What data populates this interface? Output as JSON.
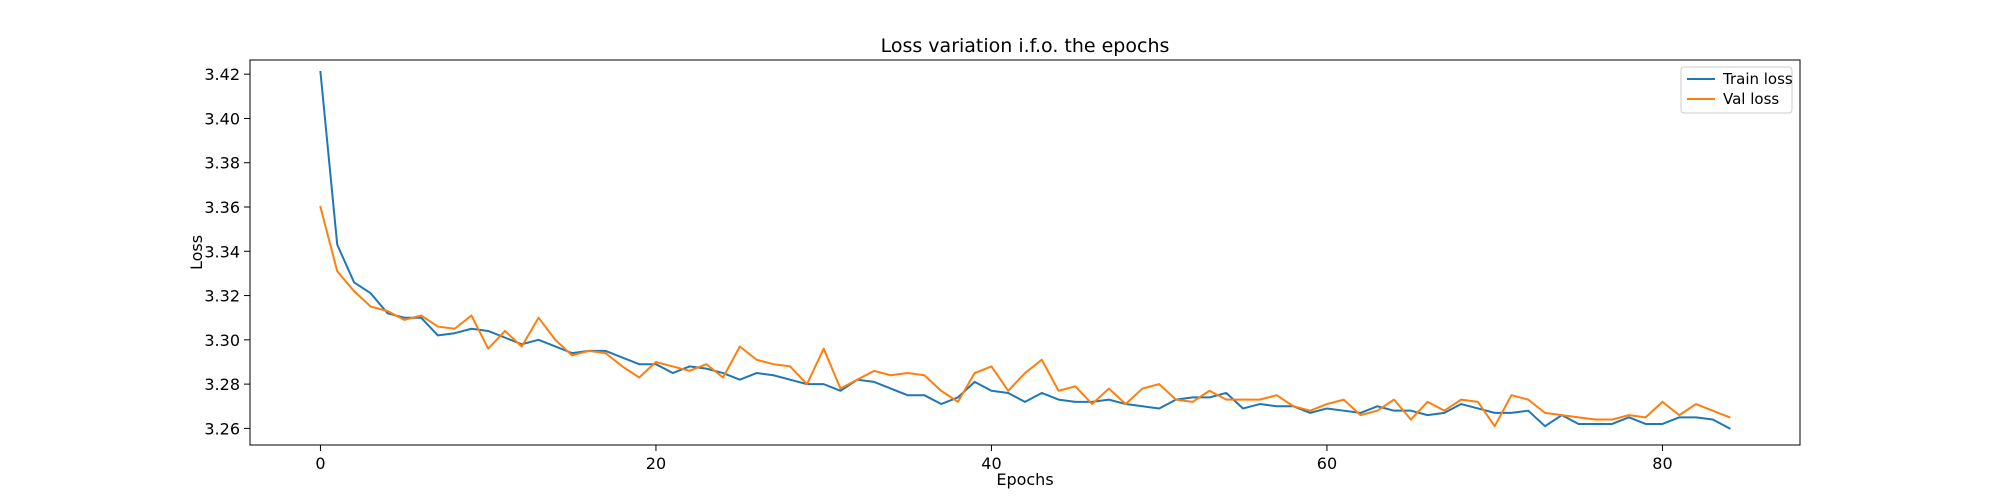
{
  "chart_data": {
    "type": "line",
    "title": "Loss variation i.f.o. the epochs",
    "xlabel": "Epochs",
    "ylabel": "Loss",
    "xlim": [
      -4.2,
      88.2
    ],
    "ylim": [
      3.2525,
      3.4264
    ],
    "xticks": [
      0,
      20,
      40,
      60,
      80
    ],
    "yticks": [
      3.26,
      3.28,
      3.3,
      3.32,
      3.34,
      3.36,
      3.38,
      3.4,
      3.42
    ],
    "ytick_labels": [
      "3.26",
      "3.28",
      "3.30",
      "3.32",
      "3.34",
      "3.36",
      "3.38",
      "3.40",
      "3.42"
    ],
    "grid": false,
    "legend_position": "top-right",
    "series": [
      {
        "name": "Train loss",
        "color": "#1f77b4",
        "x": [
          0,
          1,
          2,
          3,
          4,
          5,
          6,
          7,
          8,
          9,
          10,
          11,
          12,
          13,
          14,
          15,
          16,
          17,
          18,
          19,
          20,
          21,
          22,
          23,
          24,
          25,
          26,
          27,
          28,
          29,
          30,
          31,
          32,
          33,
          34,
          35,
          36,
          37,
          38,
          39,
          40,
          41,
          42,
          43,
          44,
          45,
          46,
          47,
          48,
          49,
          50,
          51,
          52,
          53,
          54,
          55,
          56,
          57,
          58,
          59,
          60,
          61,
          62,
          63,
          64,
          65,
          66,
          67,
          68,
          69,
          70,
          71,
          72,
          73,
          74,
          75,
          76,
          77,
          78,
          79,
          80,
          81,
          82,
          83,
          84
        ],
        "values": [
          3.421,
          3.343,
          3.326,
          3.321,
          3.312,
          3.31,
          3.31,
          3.302,
          3.303,
          3.305,
          3.304,
          3.301,
          3.298,
          3.3,
          3.297,
          3.294,
          3.295,
          3.295,
          3.292,
          3.289,
          3.289,
          3.285,
          3.288,
          3.287,
          3.285,
          3.282,
          3.285,
          3.284,
          3.282,
          3.28,
          3.28,
          3.277,
          3.282,
          3.281,
          3.278,
          3.275,
          3.275,
          3.271,
          3.274,
          3.281,
          3.277,
          3.276,
          3.272,
          3.276,
          3.273,
          3.272,
          3.272,
          3.273,
          3.271,
          3.27,
          3.269,
          3.273,
          3.274,
          3.274,
          3.276,
          3.269,
          3.271,
          3.27,
          3.27,
          3.267,
          3.269,
          3.268,
          3.267,
          3.27,
          3.268,
          3.268,
          3.266,
          3.267,
          3.271,
          3.269,
          3.267,
          3.267,
          3.268,
          3.261,
          3.266,
          3.262,
          3.262,
          3.262,
          3.265,
          3.262,
          3.262,
          3.265,
          3.265,
          3.264,
          3.26
        ]
      },
      {
        "name": "Val loss",
        "color": "#ff7f0e",
        "x": [
          0,
          1,
          2,
          3,
          4,
          5,
          6,
          7,
          8,
          9,
          10,
          11,
          12,
          13,
          14,
          15,
          16,
          17,
          18,
          19,
          20,
          21,
          22,
          23,
          24,
          25,
          26,
          27,
          28,
          29,
          30,
          31,
          32,
          33,
          34,
          35,
          36,
          37,
          38,
          39,
          40,
          41,
          42,
          43,
          44,
          45,
          46,
          47,
          48,
          49,
          50,
          51,
          52,
          53,
          54,
          55,
          56,
          57,
          58,
          59,
          60,
          61,
          62,
          63,
          64,
          65,
          66,
          67,
          68,
          69,
          70,
          71,
          72,
          73,
          74,
          75,
          76,
          77,
          78,
          79,
          80,
          81,
          82,
          83,
          84
        ],
        "values": [
          3.36,
          3.331,
          3.322,
          3.315,
          3.313,
          3.309,
          3.311,
          3.306,
          3.305,
          3.311,
          3.296,
          3.304,
          3.297,
          3.31,
          3.3,
          3.293,
          3.295,
          3.294,
          3.288,
          3.283,
          3.29,
          3.288,
          3.286,
          3.289,
          3.283,
          3.297,
          3.291,
          3.289,
          3.288,
          3.28,
          3.296,
          3.278,
          3.282,
          3.286,
          3.284,
          3.285,
          3.284,
          3.277,
          3.272,
          3.285,
          3.288,
          3.277,
          3.285,
          3.291,
          3.277,
          3.279,
          3.271,
          3.278,
          3.271,
          3.278,
          3.28,
          3.273,
          3.272,
          3.277,
          3.273,
          3.273,
          3.273,
          3.275,
          3.27,
          3.268,
          3.271,
          3.273,
          3.266,
          3.268,
          3.273,
          3.264,
          3.272,
          3.268,
          3.273,
          3.272,
          3.261,
          3.275,
          3.273,
          3.267,
          3.266,
          3.265,
          3.264,
          3.264,
          3.266,
          3.265,
          3.272,
          3.266,
          3.271,
          3.268,
          3.265
        ]
      }
    ]
  }
}
